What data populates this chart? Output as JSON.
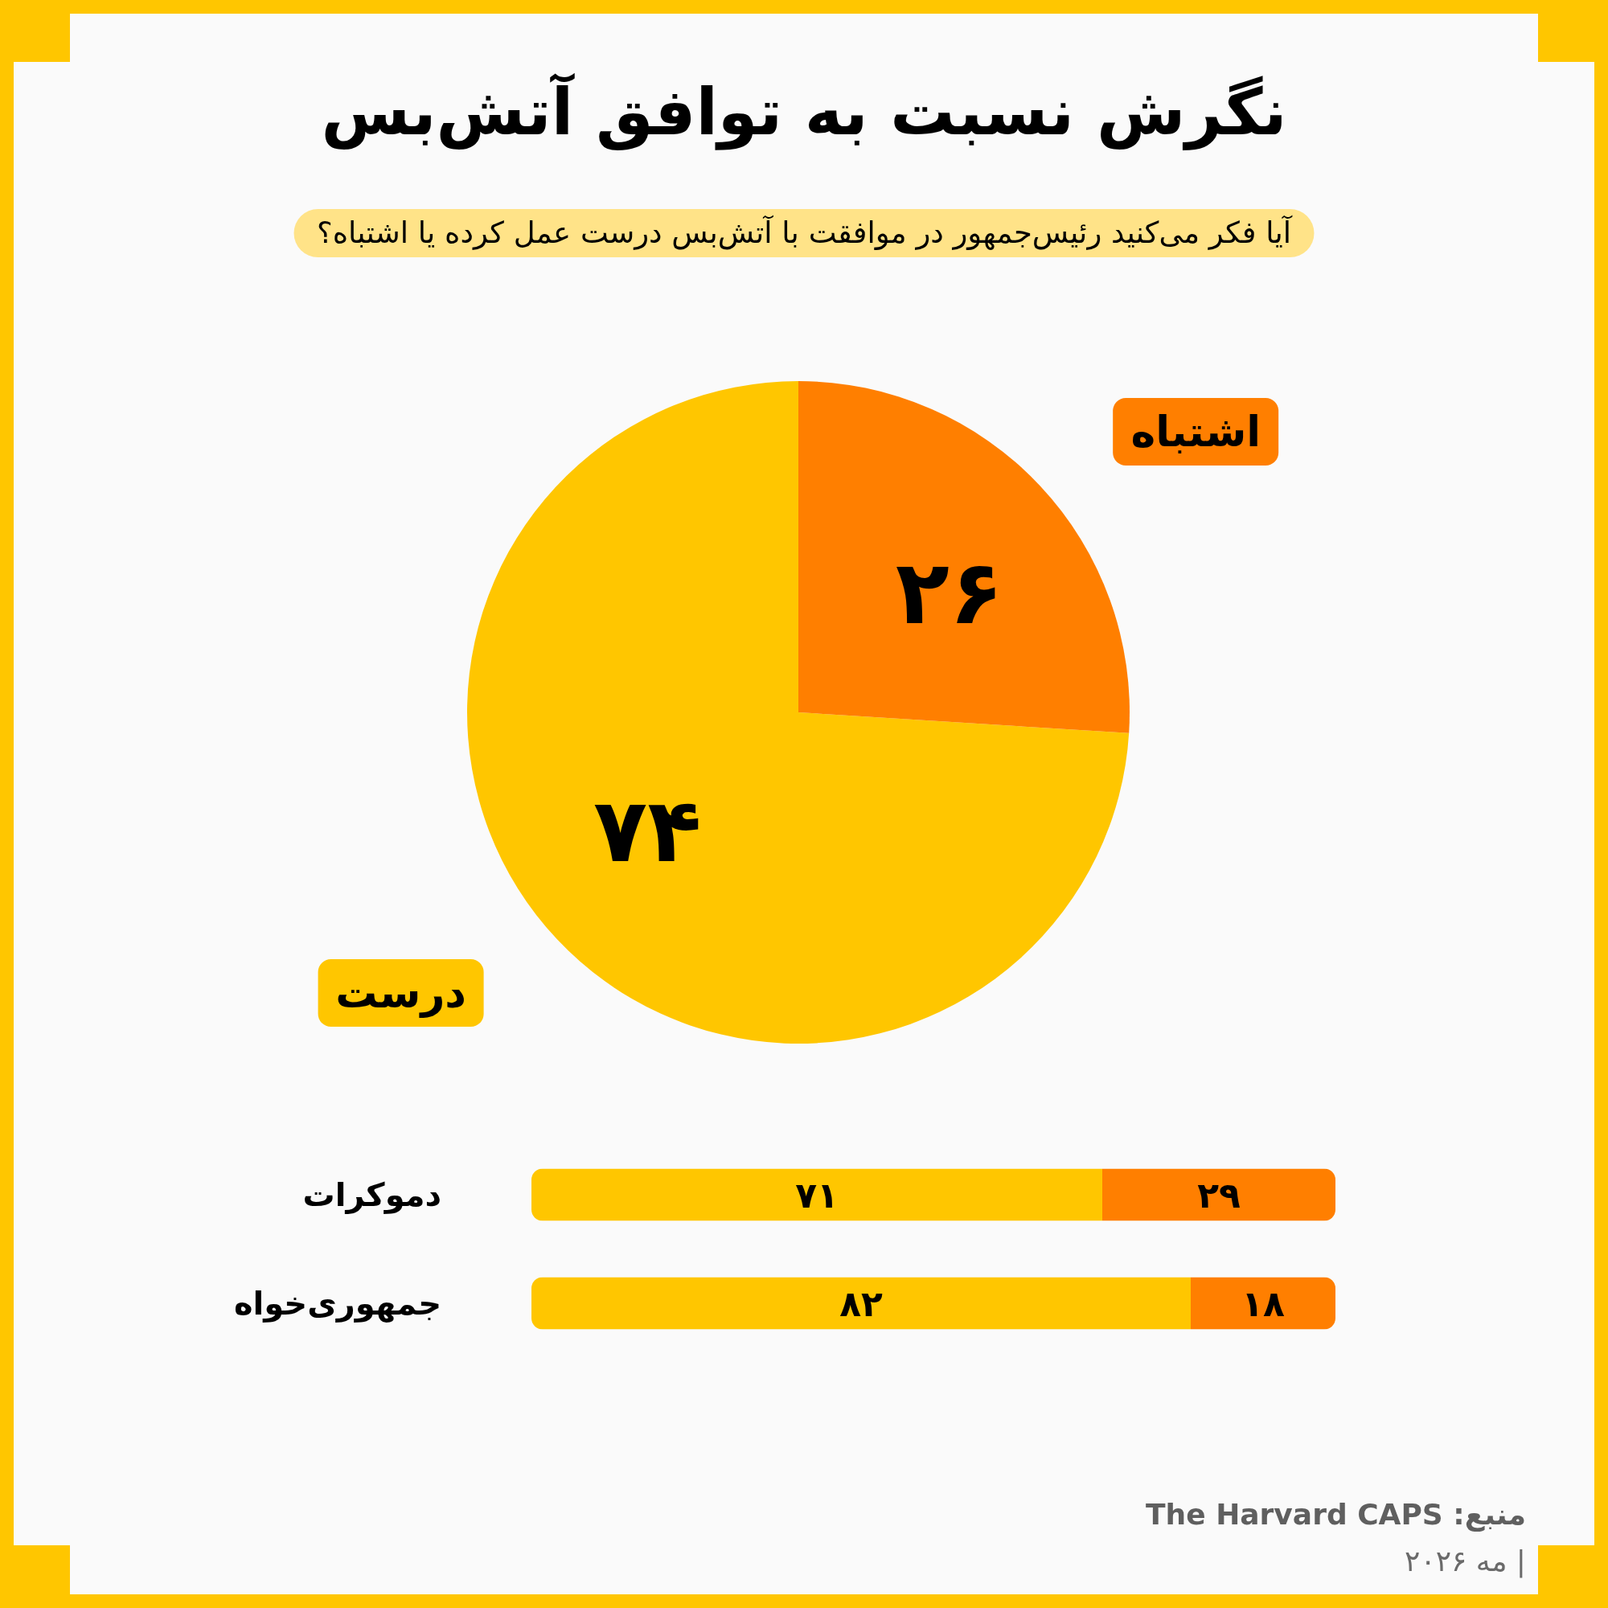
{
  "chart_data": [
    {
      "type": "pie",
      "title": "نگرش نسبت به توافق آتش‌بس",
      "subtitle": "آیا فکر می‌کنید رئیس‌جمهور در موافقت با آتش‌بس درست عمل کرده یا اشتباه؟",
      "categories": [
        "درست",
        "اشتباه"
      ],
      "values": [
        74,
        26
      ],
      "colors": [
        "#ffc600",
        "#ff7f00"
      ],
      "value_labels": [
        "۷۴",
        "۲۶"
      ]
    },
    {
      "type": "bar",
      "orientation": "horizontal",
      "stacked": true,
      "categories": [
        "دموکرات",
        "جمهوری‌خواه"
      ],
      "series": [
        {
          "color": "#ffc600",
          "values": [
            71,
            82
          ],
          "value_labels": [
            "۷۱",
            "۸۲"
          ]
        },
        {
          "color": "#ff7f00",
          "values": [
            29,
            18
          ],
          "value_labels": [
            "۲۹",
            "۱۸"
          ]
        }
      ],
      "tick_labels": "y",
      "annotations": [
        "منبع: The Harvard CAPS",
        "| مه ۲۰۲۶"
      ]
    }
  ]
}
